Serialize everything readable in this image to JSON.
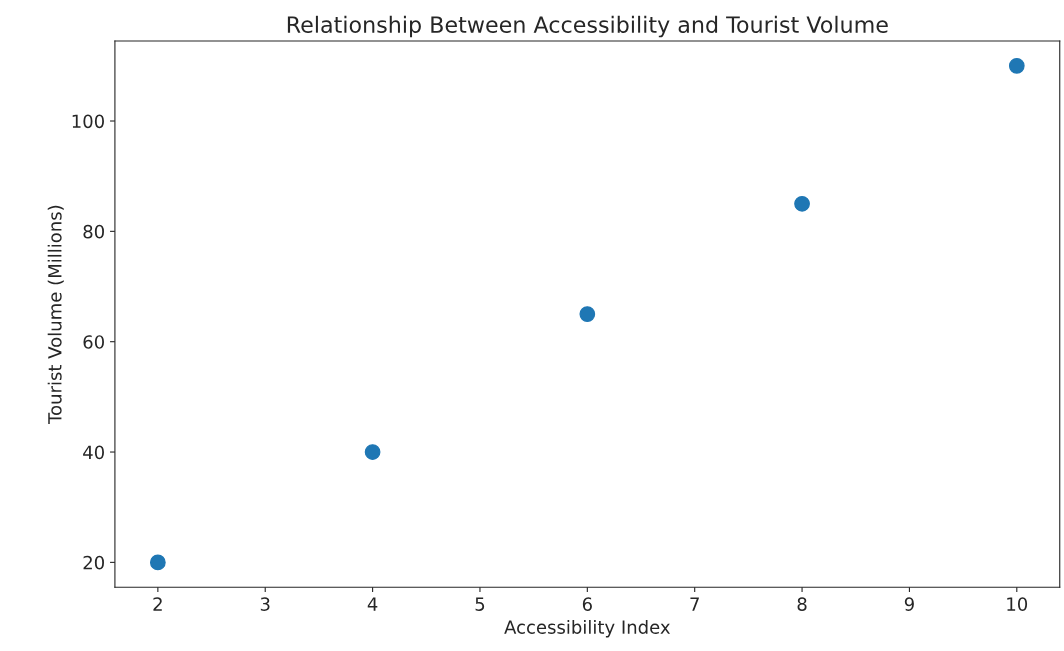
{
  "chart_data": {
    "type": "scatter",
    "title": "Relationship Between Accessibility and Tourist Volume",
    "xlabel": "Accessibility Index",
    "ylabel": "Tourist Volume (Millions)",
    "x": [
      2,
      4,
      6,
      8,
      10
    ],
    "series": [
      {
        "color": "#1f77b4",
        "values": [
          20,
          40,
          65,
          85,
          110
        ]
      }
    ],
    "xlim": [
      1.6,
      10.4
    ],
    "ylim": [
      15.5,
      114.5
    ],
    "xticks": [
      2,
      3,
      4,
      5,
      6,
      7,
      8,
      9,
      10
    ],
    "yticks": [
      20,
      40,
      60,
      80,
      100
    ],
    "marker": "circle",
    "grid": false
  }
}
